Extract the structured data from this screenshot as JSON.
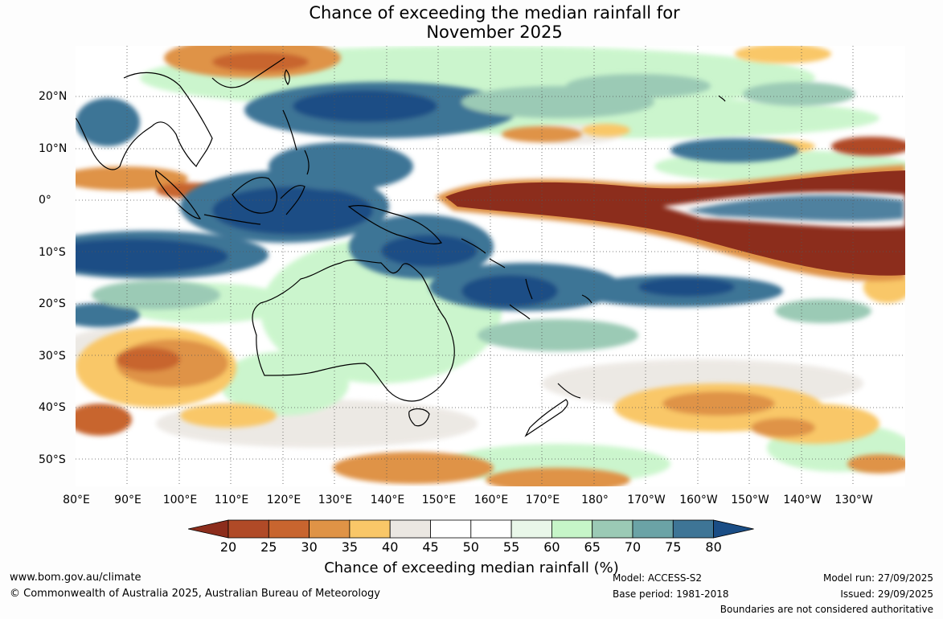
{
  "title_line1": "Chance of exceeding the median rainfall for",
  "title_line2": "November 2025",
  "lat_labels": [
    "20°N",
    "10°N",
    "0°",
    "10°S",
    "20°S",
    "30°S",
    "40°S",
    "50°S"
  ],
  "lon_labels": [
    "80°E",
    "90°E",
    "100°E",
    "110°E",
    "120°E",
    "130°E",
    "140°E",
    "150°E",
    "160°E",
    "170°E",
    "180°",
    "170°W",
    "160°W",
    "150°W",
    "140°W",
    "130°W"
  ],
  "colorbar": {
    "ticks": [
      "20",
      "25",
      "30",
      "35",
      "40",
      "45",
      "50",
      "55",
      "60",
      "65",
      "70",
      "75",
      "80"
    ],
    "colors": [
      "#8c2d1c",
      "#b04a27",
      "#c8652f",
      "#df9346",
      "#f9c768",
      "#ebe7e2",
      "#ffffff",
      "#ffffff",
      "#e9f7e9",
      "#c6f5c8",
      "#9bcab5",
      "#6ba3a6",
      "#3e7596",
      "#1a4d85"
    ],
    "title": "Chance of exceeding median rainfall (%)"
  },
  "footer": {
    "website": "www.bom.gov.au/climate",
    "copyright": "© Commonwealth of Australia 2025, Australian Bureau of Meteorology",
    "model": "Model: ACCESS-S2",
    "base_period": "Base period: 1981-2018",
    "model_run": "Model run: 27/09/2025",
    "issued": "Issued: 29/09/2025",
    "disclaimer": "Boundaries are not considered authoritative"
  },
  "map_regions": {
    "wet_high": "#1a4d85",
    "wet_mid": "#3e7596",
    "wet_low": "#9bcab5",
    "dry_high": "#8c2d1c",
    "dry_mid": "#c8652f",
    "dry_low": "#f9c768"
  }
}
